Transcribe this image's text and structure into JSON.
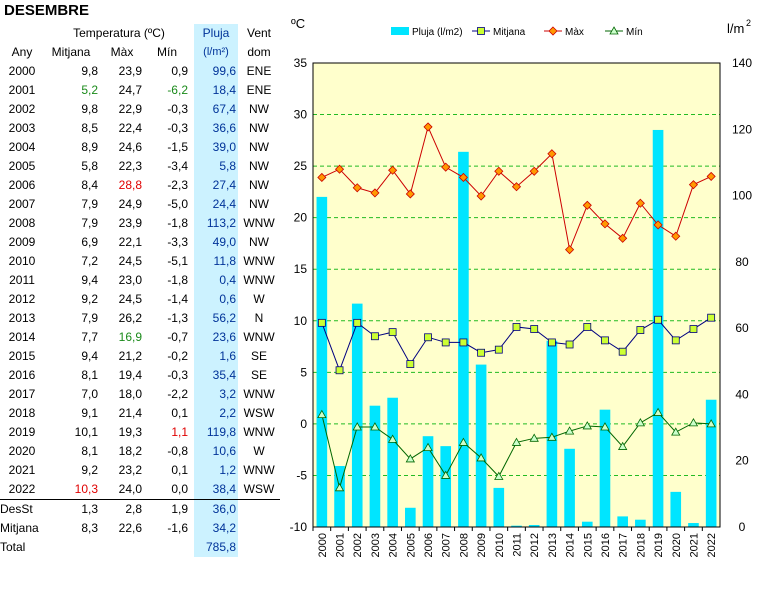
{
  "title": "DESEMBRE",
  "table": {
    "group_header": "Temperatura (ºC)",
    "headers": {
      "any": "Any",
      "mitjana": "Mitjana",
      "max": "Màx",
      "min": "Mín",
      "pluja": "Pluja",
      "pluja_unit": "(l/m²)",
      "vent": "Vent",
      "vent_sub": "dom"
    },
    "rows": [
      {
        "any": "2000",
        "mitjana": "9,8",
        "max": "23,9",
        "min": "0,9",
        "pluja": "99,6",
        "vent": "ENE"
      },
      {
        "any": "2001",
        "mitjana": "5,2",
        "max": "24,7",
        "min": "-6,2",
        "pluja": "18,4",
        "vent": "ENE",
        "mitjana_hl": "green",
        "min_hl": "green"
      },
      {
        "any": "2002",
        "mitjana": "9,8",
        "max": "22,9",
        "min": "-0,3",
        "pluja": "67,4",
        "vent": "NW"
      },
      {
        "any": "2003",
        "mitjana": "8,5",
        "max": "22,4",
        "min": "-0,3",
        "pluja": "36,6",
        "vent": "NW"
      },
      {
        "any": "2004",
        "mitjana": "8,9",
        "max": "24,6",
        "min": "-1,5",
        "pluja": "39,0",
        "vent": "NW"
      },
      {
        "any": "2005",
        "mitjana": "5,8",
        "max": "22,3",
        "min": "-3,4",
        "pluja": "5,8",
        "vent": "NW"
      },
      {
        "any": "2006",
        "mitjana": "8,4",
        "max": "28,8",
        "min": "-2,3",
        "pluja": "27,4",
        "vent": "NW",
        "max_hl": "red"
      },
      {
        "any": "2007",
        "mitjana": "7,9",
        "max": "24,9",
        "min": "-5,0",
        "pluja": "24,4",
        "vent": "NW"
      },
      {
        "any": "2008",
        "mitjana": "7,9",
        "max": "23,9",
        "min": "-1,8",
        "pluja": "113,2",
        "vent": "WNW"
      },
      {
        "any": "2009",
        "mitjana": "6,9",
        "max": "22,1",
        "min": "-3,3",
        "pluja": "49,0",
        "vent": "NW"
      },
      {
        "any": "2010",
        "mitjana": "7,2",
        "max": "24,5",
        "min": "-5,1",
        "pluja": "11,8",
        "vent": "WNW"
      },
      {
        "any": "2011",
        "mitjana": "9,4",
        "max": "23,0",
        "min": "-1,8",
        "pluja": "0,4",
        "vent": "WNW"
      },
      {
        "any": "2012",
        "mitjana": "9,2",
        "max": "24,5",
        "min": "-1,4",
        "pluja": "0,6",
        "vent": "W"
      },
      {
        "any": "2013",
        "mitjana": "7,9",
        "max": "26,2",
        "min": "-1,3",
        "pluja": "56,2",
        "vent": "N"
      },
      {
        "any": "2014",
        "mitjana": "7,7",
        "max": "16,9",
        "min": "-0,7",
        "pluja": "23,6",
        "vent": "WNW",
        "max_hl": "green"
      },
      {
        "any": "2015",
        "mitjana": "9,4",
        "max": "21,2",
        "min": "-0,2",
        "pluja": "1,6",
        "vent": "SE"
      },
      {
        "any": "2016",
        "mitjana": "8,1",
        "max": "19,4",
        "min": "-0,3",
        "pluja": "35,4",
        "vent": "SE"
      },
      {
        "any": "2017",
        "mitjana": "7,0",
        "max": "18,0",
        "min": "-2,2",
        "pluja": "3,2",
        "vent": "WNW"
      },
      {
        "any": "2018",
        "mitjana": "9,1",
        "max": "21,4",
        "min": "0,1",
        "pluja": "2,2",
        "vent": "WSW"
      },
      {
        "any": "2019",
        "mitjana": "10,1",
        "max": "19,3",
        "min": "1,1",
        "pluja": "119,8",
        "vent": "WNW",
        "min_hl": "red"
      },
      {
        "any": "2020",
        "mitjana": "8,1",
        "max": "18,2",
        "min": "-0,8",
        "pluja": "10,6",
        "vent": "W"
      },
      {
        "any": "2021",
        "mitjana": "9,2",
        "max": "23,2",
        "min": "0,1",
        "pluja": "1,2",
        "vent": "WNW"
      },
      {
        "any": "2022",
        "mitjana": "10,3",
        "max": "24,0",
        "min": "0,0",
        "pluja": "38,4",
        "vent": "WSW",
        "mitjana_hl": "red"
      }
    ],
    "summary": [
      {
        "label": "DesSt",
        "mitjana": "1,3",
        "max": "2,8",
        "min": "1,9",
        "pluja": "36,0"
      },
      {
        "label": "Mitjana",
        "mitjana": "8,3",
        "max": "22,6",
        "min": "-1,6",
        "pluja": "34,2"
      },
      {
        "label": "Total",
        "mitjana": "",
        "max": "",
        "min": "",
        "pluja": "785,8"
      }
    ]
  },
  "chart_data": {
    "type": "bar+line",
    "y_left_label": "ºC",
    "y_right_label": "l/m²",
    "y_left_range": [
      -10,
      35
    ],
    "y_left_ticks": [
      -10,
      -5,
      0,
      5,
      10,
      15,
      20,
      25,
      30,
      35
    ],
    "y_right_range": [
      0,
      140
    ],
    "y_right_ticks": [
      0,
      20,
      40,
      60,
      80,
      100,
      120,
      140
    ],
    "grid": "horizontal dashed green",
    "plot_background": "#ffffcc",
    "legend_placement": "top",
    "categories": [
      "2000",
      "2001",
      "2002",
      "2003",
      "2004",
      "2005",
      "2006",
      "2007",
      "2008",
      "2009",
      "2010",
      "2011",
      "2012",
      "2013",
      "2014",
      "2015",
      "2016",
      "2017",
      "2018",
      "2019",
      "2020",
      "2021",
      "2022"
    ],
    "series": [
      {
        "name": "Pluja (l/m2)",
        "kind": "bar",
        "axis": "right",
        "color": "#00e5ff",
        "values": [
          99.6,
          18.4,
          67.4,
          36.6,
          39.0,
          5.8,
          27.4,
          24.4,
          113.2,
          49.0,
          11.8,
          0.4,
          0.6,
          56.2,
          23.6,
          1.6,
          35.4,
          3.2,
          2.2,
          119.8,
          10.6,
          1.2,
          38.4
        ]
      },
      {
        "name": "Mitjana",
        "kind": "line",
        "axis": "left",
        "color": "#000080",
        "marker": "square",
        "marker_color": "#ccff33",
        "values": [
          9.8,
          5.2,
          9.8,
          8.5,
          8.9,
          5.8,
          8.4,
          7.9,
          7.9,
          6.9,
          7.2,
          9.4,
          9.2,
          7.9,
          7.7,
          9.4,
          8.1,
          7.0,
          9.1,
          10.1,
          8.1,
          9.2,
          10.3
        ]
      },
      {
        "name": "Màx",
        "kind": "line",
        "axis": "left",
        "color": "#cc0000",
        "marker": "diamond",
        "marker_color": "#ff9900",
        "values": [
          23.9,
          24.7,
          22.9,
          22.4,
          24.6,
          22.3,
          28.8,
          24.9,
          23.9,
          22.1,
          24.5,
          23.0,
          24.5,
          26.2,
          16.9,
          21.2,
          19.4,
          18.0,
          21.4,
          19.3,
          18.2,
          23.2,
          24.0
        ]
      },
      {
        "name": "Mín",
        "kind": "line",
        "axis": "left",
        "color": "#006600",
        "marker": "triangle",
        "marker_color": "#ccffcc",
        "values": [
          0.9,
          -6.2,
          -0.3,
          -0.3,
          -1.5,
          -3.4,
          -2.3,
          -5.0,
          -1.8,
          -3.3,
          -5.1,
          -1.8,
          -1.4,
          -1.3,
          -0.7,
          -0.2,
          -0.3,
          -2.2,
          0.1,
          1.1,
          -0.8,
          0.1,
          0.0
        ]
      }
    ]
  }
}
